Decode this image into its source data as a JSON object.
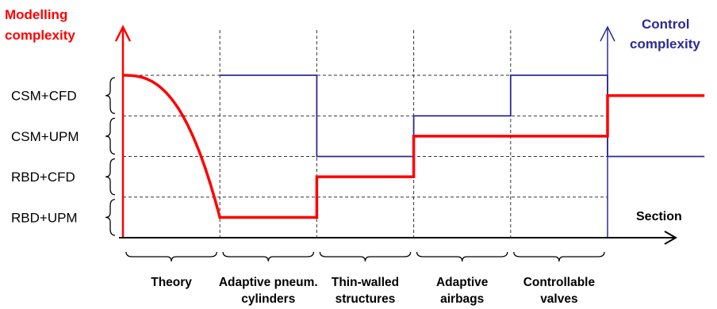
{
  "left_axis": {
    "title_lines": [
      "Modelling",
      "complexity"
    ],
    "color": "#ff0000"
  },
  "right_axis": {
    "title_lines": [
      "Control",
      "complexity"
    ],
    "color": "#2b2b9a"
  },
  "x_axis": {
    "label": "Section"
  },
  "levels": [
    "RBD+UPM",
    "RBD+CFD",
    "CSM+UPM",
    "CSM+CFD"
  ],
  "sections": [
    {
      "lines": [
        "Theory"
      ]
    },
    {
      "lines": [
        "Adaptive pneum.",
        "cylinders"
      ]
    },
    {
      "lines": [
        "Thin-walled",
        "structures"
      ]
    },
    {
      "lines": [
        "Adaptive",
        "airbags"
      ]
    },
    {
      "lines": [
        "Controllable",
        "valves"
      ]
    }
  ],
  "chart_data": {
    "type": "line",
    "x_categories": [
      "Theory",
      "Adaptive pneum. cylinders",
      "Thin-walled structures",
      "Adaptive airbags",
      "Controllable valves"
    ],
    "y_levels": [
      "RBD+UPM",
      "RBD+CFD",
      "CSM+UPM",
      "CSM+CFD"
    ],
    "series": [
      {
        "name": "Modelling complexity",
        "color": "#ff0000",
        "points": [
          [
            0,
            4
          ],
          [
            1,
            0.5
          ],
          [
            2,
            0.5
          ],
          [
            2,
            1.5
          ],
          [
            3,
            1.5
          ],
          [
            3,
            2.5
          ],
          [
            5,
            2.5
          ],
          [
            5,
            3.5
          ],
          [
            6,
            3.5
          ]
        ]
      },
      {
        "name": "Control complexity",
        "color": "#2b2b9a",
        "points": [
          [
            1,
            4
          ],
          [
            2,
            4
          ],
          [
            2,
            2
          ],
          [
            3,
            2
          ],
          [
            3,
            3
          ],
          [
            4,
            3
          ],
          [
            4,
            4
          ],
          [
            5,
            4
          ],
          [
            5,
            2
          ],
          [
            6,
            2
          ]
        ]
      }
    ]
  }
}
